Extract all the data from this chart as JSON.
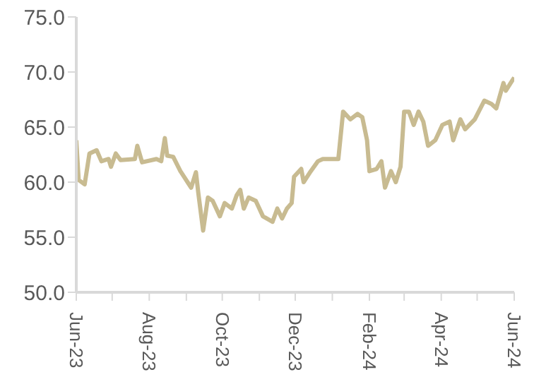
{
  "chart_data": {
    "type": "line",
    "x": [
      "2023-06-01",
      "2023-06-03",
      "2023-06-08",
      "2023-06-12",
      "2023-06-18",
      "2023-06-22",
      "2023-06-28",
      "2023-06-30",
      "2023-07-04",
      "2023-07-08",
      "2023-07-20",
      "2023-07-22",
      "2023-07-26",
      "2023-08-07",
      "2023-08-11",
      "2023-08-14",
      "2023-08-16",
      "2023-08-21",
      "2023-08-27",
      "2023-09-02",
      "2023-09-05",
      "2023-09-09",
      "2023-09-11",
      "2023-09-15",
      "2023-09-19",
      "2023-09-23",
      "2023-09-29",
      "2023-10-03",
      "2023-10-09",
      "2023-10-13",
      "2023-10-16",
      "2023-10-19",
      "2023-10-23",
      "2023-10-29",
      "2023-11-04",
      "2023-11-12",
      "2023-11-16",
      "2023-11-20",
      "2023-11-24",
      "2023-11-28",
      "2023-11-30",
      "2023-12-06",
      "2023-12-08",
      "2023-12-14",
      "2023-12-20",
      "2023-12-24",
      "2024-01-06",
      "2024-01-10",
      "2024-01-16",
      "2024-01-22",
      "2024-01-26",
      "2024-01-30",
      "2024-02-01",
      "2024-02-07",
      "2024-02-11",
      "2024-02-14",
      "2024-02-19",
      "2024-02-23",
      "2024-02-27",
      "2024-03-01",
      "2024-03-05",
      "2024-03-09",
      "2024-03-13",
      "2024-03-17",
      "2024-03-21",
      "2024-03-27",
      "2024-04-02",
      "2024-04-08",
      "2024-04-11",
      "2024-04-17",
      "2024-04-21",
      "2024-04-29",
      "2024-05-07",
      "2024-05-13",
      "2024-05-17",
      "2024-05-23",
      "2024-05-25",
      "2024-05-29",
      "2024-06-01"
    ],
    "series": [
      {
        "color": "#c8bb91",
        "values": [
          63.8,
          60.2,
          59.8,
          62.6,
          62.9,
          61.9,
          62.1,
          61.4,
          62.6,
          62.0,
          62.1,
          63.3,
          61.8,
          62.1,
          61.9,
          64.0,
          62.4,
          62.3,
          61.0,
          60.0,
          59.5,
          60.9,
          59.0,
          55.6,
          58.6,
          58.3,
          56.9,
          58.1,
          57.6,
          58.8,
          59.3,
          57.6,
          58.6,
          58.3,
          56.9,
          56.4,
          57.6,
          56.7,
          57.6,
          58.1,
          60.5,
          61.2,
          60.0,
          61.0,
          61.9,
          62.1,
          62.1,
          66.4,
          65.7,
          66.2,
          65.9,
          63.8,
          61.0,
          61.2,
          61.9,
          59.5,
          61.0,
          60.0,
          61.4,
          66.4,
          66.4,
          65.2,
          66.4,
          65.5,
          63.3,
          63.8,
          65.2,
          65.5,
          63.8,
          65.7,
          64.8,
          65.7,
          67.4,
          67.1,
          66.7,
          69.0,
          68.3,
          69.0,
          69.5
        ]
      }
    ],
    "xlim": [
      "2023-06-01",
      "2024-06-01"
    ],
    "xticks": [
      {
        "value": "2023-06-01",
        "label": "Jun-23"
      },
      {
        "value": "2023-07-01",
        "label": null
      },
      {
        "value": "2023-08-01",
        "label": "Aug-23"
      },
      {
        "value": "2023-09-01",
        "label": null
      },
      {
        "value": "2023-10-01",
        "label": "Oct-23"
      },
      {
        "value": "2023-11-01",
        "label": null
      },
      {
        "value": "2023-12-01",
        "label": "Dec-23"
      },
      {
        "value": "2024-01-01",
        "label": null
      },
      {
        "value": "2024-02-01",
        "label": "Feb-24"
      },
      {
        "value": "2024-03-01",
        "label": null
      },
      {
        "value": "2024-04-01",
        "label": "Apr-24"
      },
      {
        "value": "2024-05-01",
        "label": null
      },
      {
        "value": "2024-06-01",
        "label": "Jun-24"
      }
    ],
    "ylim": [
      50,
      75
    ],
    "yticks": [
      {
        "value": 50,
        "label": "50.0"
      },
      {
        "value": 55,
        "label": "55.0"
      },
      {
        "value": 60,
        "label": "60.0"
      },
      {
        "value": 65,
        "label": "65.0"
      },
      {
        "value": 70,
        "label": "70.0"
      },
      {
        "value": 75,
        "label": "75.0"
      }
    ],
    "grid": false,
    "legend": false,
    "marker": "none",
    "line_style": "solid"
  }
}
